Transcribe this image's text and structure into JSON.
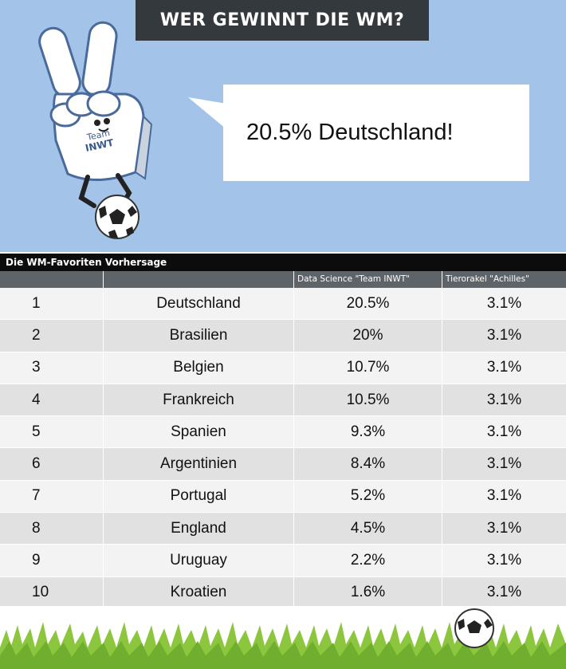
{
  "header": {
    "title": "WER GEWINNT DIE WM?"
  },
  "mascot": {
    "label_line1": "Team",
    "label_line2": "INWT"
  },
  "speech_bubble": {
    "text": "20.5% Deutschland!"
  },
  "table": {
    "title": "Die WM-Favoriten Vorhersage",
    "columns": [
      "",
      "",
      "Data Science \"Team INWT\"",
      "Tierorakel \"Achilles\""
    ],
    "rows": [
      {
        "rank": "1",
        "country": "Deutschland",
        "ds": "20.5%",
        "achilles": "3.1%"
      },
      {
        "rank": "2",
        "country": "Brasilien",
        "ds": "20%",
        "achilles": "3.1%"
      },
      {
        "rank": "3",
        "country": "Belgien",
        "ds": "10.7%",
        "achilles": "3.1%"
      },
      {
        "rank": "4",
        "country": "Frankreich",
        "ds": "10.5%",
        "achilles": "3.1%"
      },
      {
        "rank": "5",
        "country": "Spanien",
        "ds": "9.3%",
        "achilles": "3.1%"
      },
      {
        "rank": "6",
        "country": "Argentinien",
        "ds": "8.4%",
        "achilles": "3.1%"
      },
      {
        "rank": "7",
        "country": "Portugal",
        "ds": "5.2%",
        "achilles": "3.1%"
      },
      {
        "rank": "8",
        "country": "England",
        "ds": "4.5%",
        "achilles": "3.1%"
      },
      {
        "rank": "9",
        "country": "Uruguay",
        "ds": "2.2%",
        "achilles": "3.1%"
      },
      {
        "rank": "10",
        "country": "Kroatien",
        "ds": "1.6%",
        "achilles": "3.1%"
      }
    ]
  },
  "colors": {
    "sky": "#a3c4e8",
    "title_bg": "#34393d",
    "header_bg": "#5f6468",
    "grass": "#8cc63f"
  }
}
